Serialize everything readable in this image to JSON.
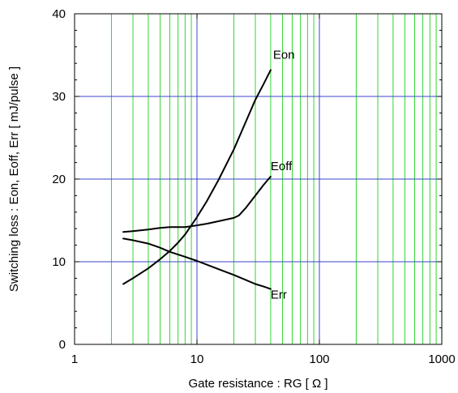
{
  "chart_data": {
    "type": "line",
    "title": "",
    "xlabel": "Gate resistance : RG [ Ω ]",
    "ylabel": "Switching loss : Eon, Eoff, Err [ mJ/pulse ]",
    "xscale": "log",
    "xlim": [
      1,
      1000
    ],
    "ylim": [
      0,
      40
    ],
    "x_ticks": [
      "1",
      "10",
      "100",
      "1000"
    ],
    "y_ticks": [
      "0",
      "10",
      "20",
      "30",
      "40"
    ],
    "grid": true,
    "colors": {
      "major_grid": "#3a46c8",
      "minor_grid": "#33d633",
      "series": "#000000",
      "frame": "#000000"
    },
    "series": [
      {
        "name": "Eon",
        "x": [
          2.5,
          3,
          4,
          5,
          6,
          7,
          8,
          10,
          12,
          15,
          20,
          25,
          30,
          35,
          40
        ],
        "y": [
          7.3,
          8.0,
          9.2,
          10.3,
          11.3,
          12.3,
          13.3,
          15.4,
          17.3,
          19.9,
          23.6,
          26.9,
          29.6,
          31.5,
          33.2
        ]
      },
      {
        "name": "Eoff",
        "x": [
          2.5,
          3,
          4,
          5,
          6,
          8,
          10,
          12,
          15,
          20,
          22,
          25,
          30,
          35,
          40
        ],
        "y": [
          13.6,
          13.7,
          13.9,
          14.1,
          14.2,
          14.2,
          14.4,
          14.6,
          14.9,
          15.3,
          15.6,
          16.5,
          18.0,
          19.3,
          20.3
        ]
      },
      {
        "name": "Err",
        "x": [
          2.5,
          3,
          4,
          5,
          6,
          8,
          10,
          15,
          20,
          25,
          30,
          35,
          40
        ],
        "y": [
          12.8,
          12.6,
          12.2,
          11.7,
          11.2,
          10.6,
          10.1,
          9.1,
          8.4,
          7.8,
          7.3,
          7.0,
          6.7
        ]
      }
    ]
  }
}
